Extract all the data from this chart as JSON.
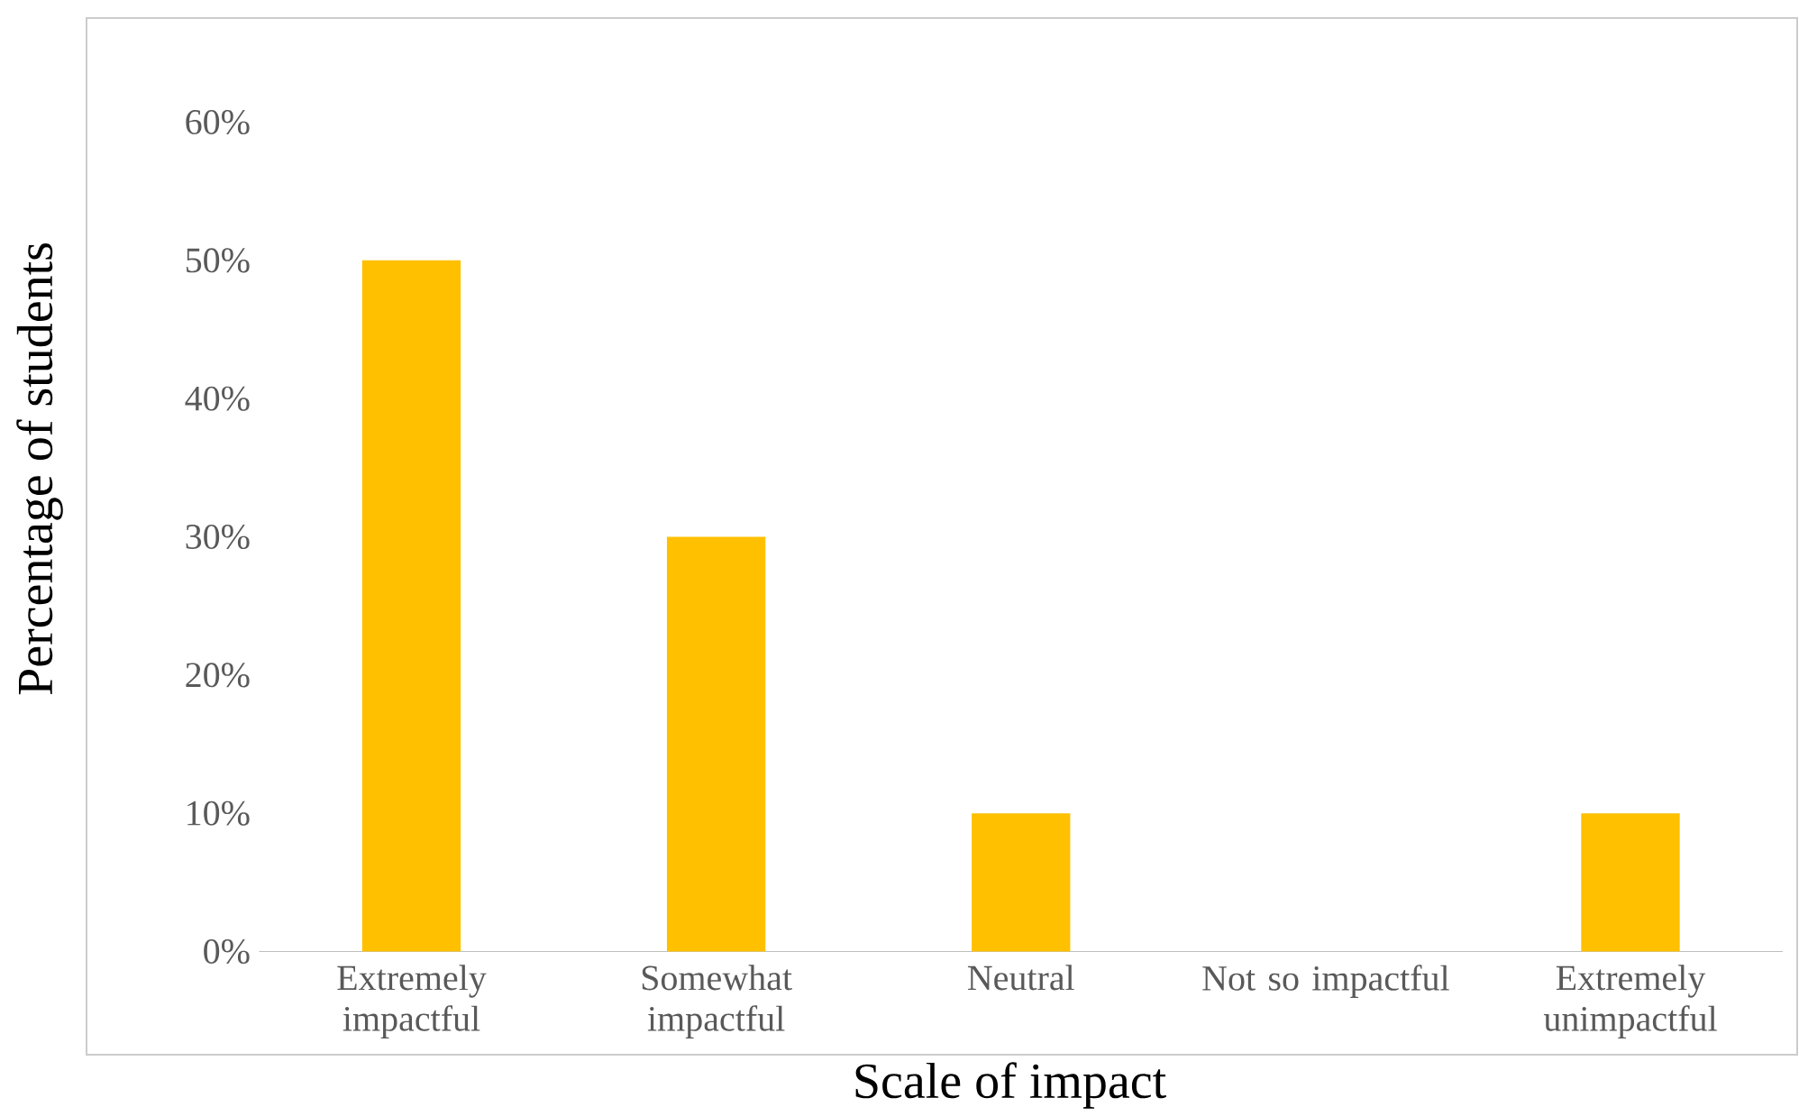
{
  "chart_data": {
    "type": "bar",
    "xlabel": "Scale of impact",
    "ylabel": "Percentage of students",
    "categories": [
      "Extremely impactful",
      "Somewhat impactful",
      "Neutral",
      "Not so impactful",
      "Extremely unimpactful"
    ],
    "values": [
      50,
      30,
      10,
      0,
      10
    ],
    "color": "#ffc000",
    "ylim": [
      0,
      60
    ],
    "yticks": [
      {
        "value": 0,
        "label": "0%"
      },
      {
        "value": 10,
        "label": "10%"
      },
      {
        "value": 20,
        "label": "20%"
      },
      {
        "value": 30,
        "label": "30%"
      },
      {
        "value": 40,
        "label": "40%"
      },
      {
        "value": 50,
        "label": "50%"
      },
      {
        "value": 60,
        "label": "60%"
      }
    ]
  }
}
